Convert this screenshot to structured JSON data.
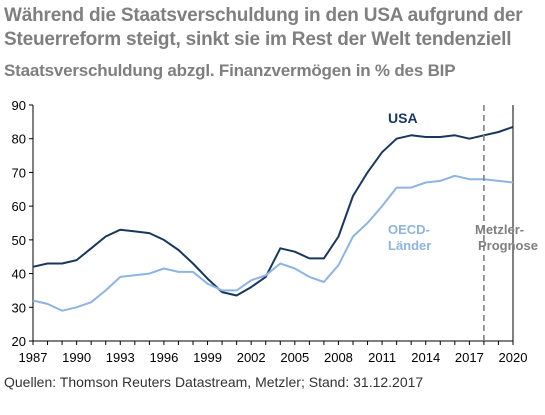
{
  "header": {
    "title": "Während die Staatsverschuldung in den USA aufgrund der Steuerreform steigt, sinkt sie im Rest der Welt tendenziell",
    "subtitle": "Staatsverschuldung abzgl. Finanzvermögen in % des BIP"
  },
  "footer": {
    "source": "Quellen: Thomson Reuters Datastream, Metzler; Stand: 31.12.2017"
  },
  "colors": {
    "usa": "#17375e",
    "oecd": "#8db4e2",
    "prognose_line": "#808080",
    "prognose_label": "#7f7f7f",
    "title": "#7f7f7f"
  },
  "chart_data": {
    "type": "line",
    "title": "Während die Staatsverschuldung in den USA aufgrund der Steuerreform steigt, sinkt sie im Rest der Welt tendenziell",
    "subtitle": "Staatsverschuldung abzgl. Finanzvermögen in % des BIP",
    "xlabel": "",
    "ylabel": "",
    "xlim": [
      1987,
      2020
    ],
    "ylim": [
      20,
      90
    ],
    "x_ticks": [
      "1987",
      "1990",
      "1993",
      "1996",
      "1999",
      "2002",
      "2005",
      "2008",
      "2011",
      "2014",
      "2017",
      "2020"
    ],
    "y_ticks": [
      "20",
      "30",
      "40",
      "50",
      "60",
      "70",
      "80",
      "90"
    ],
    "grid": false,
    "series": [
      {
        "name": "USA",
        "x": [
          1987,
          1988,
          1989,
          1990,
          1991,
          1992,
          1993,
          1994,
          1995,
          1996,
          1997,
          1998,
          1999,
          2000,
          2001,
          2002,
          2003,
          2004,
          2005,
          2006,
          2007,
          2008,
          2009,
          2010,
          2011,
          2012,
          2013,
          2014,
          2015,
          2016,
          2017,
          2018,
          2019,
          2020
        ],
        "values": [
          42,
          43,
          43,
          44,
          47.5,
          51,
          53,
          52.5,
          52,
          50,
          47,
          43,
          38.5,
          34.5,
          33.5,
          36,
          39,
          47.5,
          46.5,
          44.5,
          44.5,
          51,
          63,
          70,
          76,
          80,
          81,
          80.5,
          80.5,
          81,
          80,
          81,
          82,
          83.5
        ]
      },
      {
        "name": "OECD-Länder",
        "x": [
          1987,
          1988,
          1989,
          1990,
          1991,
          1992,
          1993,
          1994,
          1995,
          1996,
          1997,
          1998,
          1999,
          2000,
          2001,
          2002,
          2003,
          2004,
          2005,
          2006,
          2007,
          2008,
          2009,
          2010,
          2011,
          2012,
          2013,
          2014,
          2015,
          2016,
          2017,
          2018,
          2019,
          2020
        ],
        "values": [
          32,
          31,
          29,
          30,
          31.5,
          35,
          39,
          39.5,
          40,
          41.5,
          40.5,
          40.5,
          37,
          35,
          35,
          38,
          39.5,
          43,
          41.5,
          39,
          37.5,
          42.5,
          51,
          55,
          60,
          65.5,
          65.5,
          67,
          67.5,
          69,
          68,
          68,
          67.5,
          67
        ]
      }
    ],
    "annotations": {
      "usa_label": "USA",
      "oecd_label_1": "OECD-",
      "oecd_label_2": "Länder",
      "prognose_label_1": "Metzler-",
      "prognose_label_2": "Prognose",
      "prognose_start": 2018
    }
  }
}
